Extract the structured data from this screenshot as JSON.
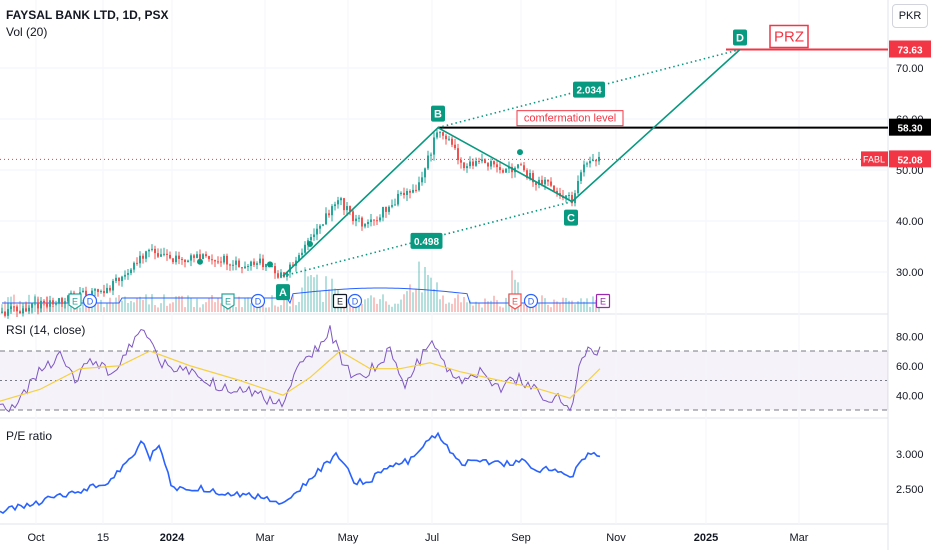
{
  "header": {
    "symbol": "FAYSAL BANK LTD, 1D, PSX",
    "volume_label": "Vol (20)",
    "rsi_label": "RSI (14, close)",
    "pe_label": "P/E ratio",
    "currency_button": "PKR"
  },
  "colors": {
    "up": "#26a69a",
    "down": "#ef5350",
    "pattern": "#089981",
    "rsi_line": "#7e57c2",
    "rsi_ma": "#f5d142",
    "pe_line": "#2962ff",
    "volume_ma": "#2962ff",
    "level_black": "#000000",
    "level_red": "#f23645",
    "price_line": "#f23645"
  },
  "chart_data": [
    {
      "type": "candlestick",
      "pane": "price",
      "y_ticks": [
        "70.00",
        "60.00",
        "50.00",
        "40.00",
        "30.00"
      ],
      "y_range": [
        25,
        78
      ],
      "x_ticks": [
        "Oct",
        "15",
        "2024",
        "Mar",
        "May",
        "Jul",
        "Sep",
        "Nov",
        "2025",
        "Mar"
      ],
      "price_path": [
        [
          0,
          22.0
        ],
        [
          40,
          23.5
        ],
        [
          80,
          25.5
        ],
        [
          110,
          27.0
        ],
        [
          130,
          31.0
        ],
        [
          150,
          33.8
        ],
        [
          175,
          32.5
        ],
        [
          200,
          33.0
        ],
        [
          220,
          32.8
        ],
        [
          240,
          31.5
        ],
        [
          260,
          31.8
        ],
        [
          283,
          29.2
        ],
        [
          300,
          33.0
        ],
        [
          320,
          39.0
        ],
        [
          338,
          44.5
        ],
        [
          355,
          40.0
        ],
        [
          370,
          39.5
        ],
        [
          388,
          43.0
        ],
        [
          405,
          45.5
        ],
        [
          418,
          47.0
        ],
        [
          428,
          52.0
        ],
        [
          438,
          58.0
        ],
        [
          450,
          55.5
        ],
        [
          462,
          50.5
        ],
        [
          480,
          52.0
        ],
        [
          500,
          50.0
        ],
        [
          518,
          50.5
        ],
        [
          535,
          48.0
        ],
        [
          555,
          46.5
        ],
        [
          572,
          44.0
        ],
        [
          582,
          51.0
        ],
        [
          592,
          52.5
        ],
        [
          600,
          52.08
        ]
      ],
      "dots": [
        [
          90,
          24.5
        ],
        [
          200,
          32.0
        ],
        [
          270,
          31.5
        ],
        [
          310,
          35.5
        ],
        [
          520,
          53.5
        ]
      ],
      "last_price": "52.08",
      "last_label": "FABL",
      "pattern_points": [
        {
          "label": "A",
          "x": 283,
          "y": 29.2
        },
        {
          "label": "B",
          "x": 438,
          "y": 58.3
        },
        {
          "label": "C",
          "x": 572,
          "y": 43.8
        },
        {
          "label": "D",
          "x": 740,
          "y": 73.63
        }
      ],
      "ratios": [
        "2.034",
        "0.498"
      ],
      "levels": [
        {
          "price": "58.30",
          "label": "comfermation level",
          "color": "#000000"
        },
        {
          "price": "73.63",
          "label": "PRZ",
          "color": "#f23645"
        }
      ],
      "event_markers": [
        {
          "label": "E",
          "x": 75,
          "style": "green"
        },
        {
          "label": "D",
          "x": 90,
          "style": "blue"
        },
        {
          "label": "E",
          "x": 228,
          "style": "green"
        },
        {
          "label": "D",
          "x": 258,
          "style": "blue"
        },
        {
          "label": "E",
          "x": 340,
          "style": "dark"
        },
        {
          "label": "D",
          "x": 355,
          "style": "blue"
        },
        {
          "label": "E",
          "x": 515,
          "style": "red"
        },
        {
          "label": "D",
          "x": 531,
          "style": "blue"
        },
        {
          "label": "E",
          "x": 603,
          "style": "purple"
        }
      ]
    },
    {
      "type": "line",
      "pane": "rsi",
      "y_ticks": [
        "80.00",
        "60.00",
        "40.00"
      ],
      "y_range": [
        25,
        90
      ],
      "bands": [
        70,
        50,
        30
      ],
      "rsi": [
        [
          0,
          30
        ],
        [
          20,
          36
        ],
        [
          40,
          58
        ],
        [
          60,
          66
        ],
        [
          75,
          50
        ],
        [
          90,
          66
        ],
        [
          110,
          55
        ],
        [
          130,
          72
        ],
        [
          145,
          84
        ],
        [
          160,
          62
        ],
        [
          180,
          58
        ],
        [
          200,
          54
        ],
        [
          220,
          46
        ],
        [
          240,
          44
        ],
        [
          260,
          40
        ],
        [
          283,
          33
        ],
        [
          300,
          60
        ],
        [
          320,
          74
        ],
        [
          330,
          84
        ],
        [
          345,
          58
        ],
        [
          360,
          52
        ],
        [
          375,
          60
        ],
        [
          390,
          70
        ],
        [
          405,
          48
        ],
        [
          420,
          64
        ],
        [
          432,
          78
        ],
        [
          445,
          58
        ],
        [
          460,
          50
        ],
        [
          480,
          55
        ],
        [
          500,
          45
        ],
        [
          520,
          52
        ],
        [
          540,
          40
        ],
        [
          560,
          38
        ],
        [
          572,
          32
        ],
        [
          580,
          66
        ],
        [
          590,
          72
        ],
        [
          600,
          69
        ]
      ],
      "rsi_ma": [
        [
          0,
          36
        ],
        [
          40,
          44
        ],
        [
          80,
          58
        ],
        [
          120,
          60
        ],
        [
          150,
          70
        ],
        [
          190,
          60
        ],
        [
          240,
          50
        ],
        [
          283,
          40
        ],
        [
          310,
          52
        ],
        [
          340,
          70
        ],
        [
          370,
          58
        ],
        [
          400,
          58
        ],
        [
          430,
          62
        ],
        [
          460,
          56
        ],
        [
          500,
          50
        ],
        [
          540,
          44
        ],
        [
          570,
          38
        ],
        [
          585,
          48
        ],
        [
          600,
          58
        ]
      ]
    },
    {
      "type": "line",
      "pane": "pe_ratio",
      "y_ticks": [
        "3.000",
        "2.500"
      ],
      "y_range": [
        2.1,
        3.35
      ],
      "values": [
        [
          0,
          2.18
        ],
        [
          30,
          2.28
        ],
        [
          60,
          2.4
        ],
        [
          90,
          2.52
        ],
        [
          110,
          2.62
        ],
        [
          130,
          2.9
        ],
        [
          142,
          3.18
        ],
        [
          150,
          2.95
        ],
        [
          160,
          3.15
        ],
        [
          172,
          2.5
        ],
        [
          200,
          2.52
        ],
        [
          230,
          2.42
        ],
        [
          260,
          2.4
        ],
        [
          283,
          2.25
        ],
        [
          300,
          2.5
        ],
        [
          320,
          2.78
        ],
        [
          338,
          3.0
        ],
        [
          355,
          2.6
        ],
        [
          370,
          2.62
        ],
        [
          390,
          2.85
        ],
        [
          410,
          2.9
        ],
        [
          425,
          3.15
        ],
        [
          438,
          3.27
        ],
        [
          450,
          3.05
        ],
        [
          462,
          2.85
        ],
        [
          480,
          2.92
        ],
        [
          500,
          2.85
        ],
        [
          520,
          2.9
        ],
        [
          540,
          2.78
        ],
        [
          555,
          2.8
        ],
        [
          572,
          2.68
        ],
        [
          582,
          2.95
        ],
        [
          592,
          2.98
        ],
        [
          600,
          3.0
        ]
      ]
    }
  ]
}
